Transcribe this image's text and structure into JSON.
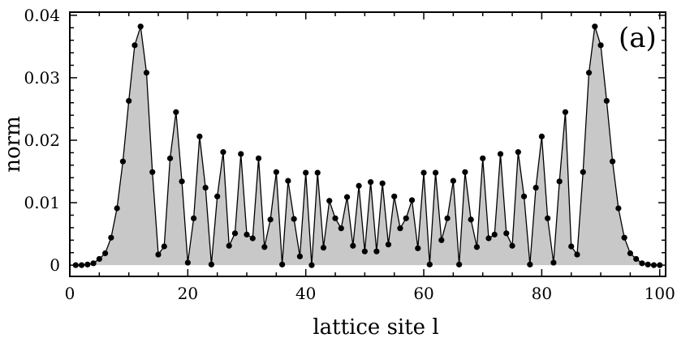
{
  "chart_data": {
    "type": "area",
    "panel_label": "(a)",
    "xlabel": "lattice site l",
    "ylabel": "norm",
    "xlim": [
      0,
      101
    ],
    "ylim": [
      -0.0018,
      0.0405
    ],
    "x_ticks": [
      0,
      20,
      40,
      60,
      80,
      100
    ],
    "x_tick_labels": [
      "0",
      "20",
      "40",
      "60",
      "80",
      "100"
    ],
    "y_ticks": [
      0,
      0.01,
      0.02,
      0.03,
      0.04
    ],
    "y_tick_labels": [
      "0",
      "0.01",
      "0.02",
      "0.03",
      "0.04"
    ],
    "grid": false,
    "fill_color": "#c8c8c8",
    "line_color": "#000000",
    "series": [
      {
        "x": [
          1,
          2,
          3,
          4,
          5,
          6,
          7,
          8,
          9,
          10,
          11,
          12,
          13,
          14,
          15,
          16,
          17,
          18,
          19,
          20,
          21,
          22,
          23,
          24,
          25,
          26,
          27,
          28,
          29,
          30,
          31,
          32,
          33,
          34,
          35,
          36,
          37,
          38,
          39,
          40,
          41,
          42,
          43,
          44,
          45,
          46,
          47,
          48,
          49,
          50,
          51,
          52,
          53,
          54,
          55,
          56,
          57,
          58,
          59,
          60,
          61,
          62,
          63,
          64,
          65,
          66,
          67,
          68,
          69,
          70,
          71,
          72,
          73,
          74,
          75,
          76,
          77,
          78,
          79,
          80,
          81,
          82,
          83,
          84,
          85,
          86,
          87,
          88,
          89,
          90,
          91,
          92,
          93,
          94,
          95,
          96,
          97,
          98,
          99,
          100
        ],
        "values": [
          0.0,
          0.0,
          0.0001,
          0.0003,
          0.001,
          0.0019,
          0.0044,
          0.0091,
          0.0166,
          0.0263,
          0.0352,
          0.0382,
          0.0308,
          0.0149,
          0.0017,
          0.003,
          0.0171,
          0.0245,
          0.0134,
          0.0004,
          0.0075,
          0.0206,
          0.0124,
          0.0001,
          0.011,
          0.0181,
          0.0031,
          0.0051,
          0.0178,
          0.0049,
          0.0043,
          0.0171,
          0.0029,
          0.0073,
          0.0149,
          0.0001,
          0.0135,
          0.0074,
          0.0014,
          0.0148,
          0.0,
          0.0148,
          0.0028,
          0.0103,
          0.0075,
          0.0059,
          0.0109,
          0.0031,
          0.0127,
          0.0022,
          0.0133,
          0.0022,
          0.0131,
          0.0033,
          0.011,
          0.0059,
          0.0075,
          0.0104,
          0.0027,
          0.0148,
          0.0001,
          0.0148,
          0.004,
          0.0075,
          0.0135,
          0.0001,
          0.0149,
          0.0073,
          0.0029,
          0.0171,
          0.0043,
          0.0049,
          0.0178,
          0.0051,
          0.0031,
          0.0181,
          0.011,
          0.0001,
          0.0124,
          0.0206,
          0.0075,
          0.0004,
          0.0134,
          0.0245,
          0.003,
          0.0017,
          0.0149,
          0.0308,
          0.0382,
          0.0352,
          0.0263,
          0.0166,
          0.0091,
          0.0044,
          0.0019,
          0.001,
          0.0003,
          0.0001,
          0.0,
          0.0
        ]
      }
    ]
  }
}
